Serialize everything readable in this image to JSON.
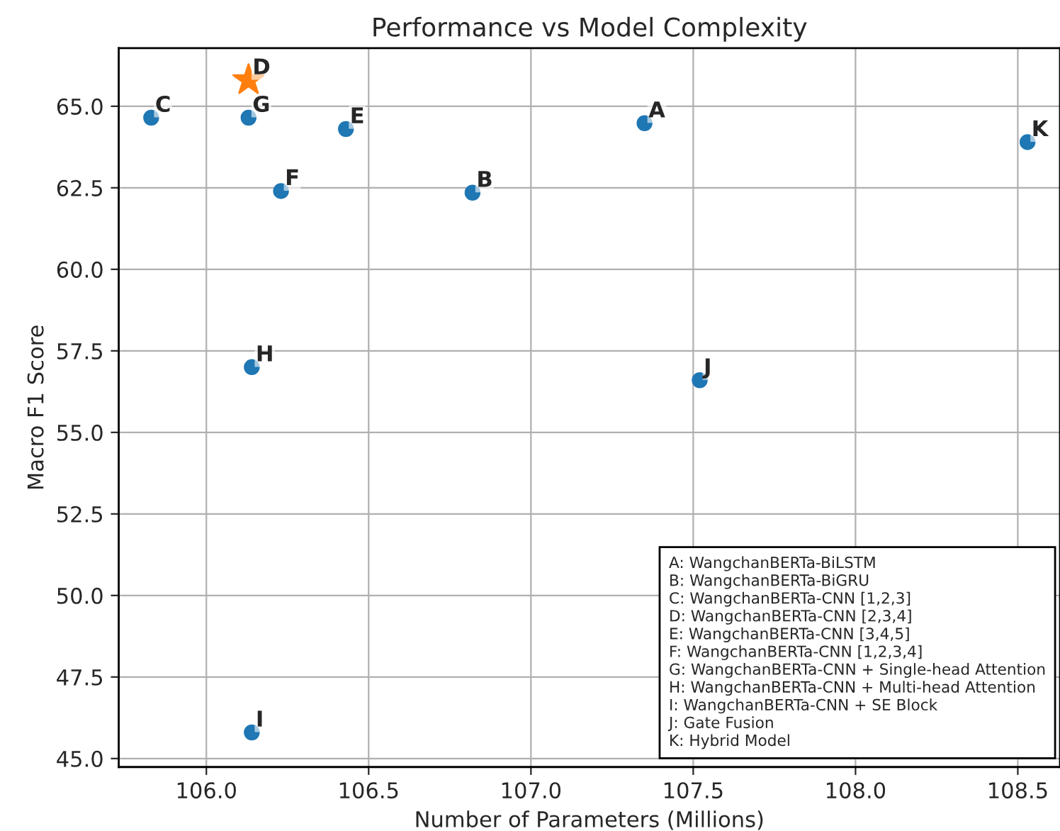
{
  "chart_data": {
    "type": "scatter",
    "title": "Performance vs Model Complexity",
    "xlabel": "Number of Parameters (Millions)",
    "ylabel": "Macro F1 Score",
    "xlim": [
      105.73,
      108.63
    ],
    "xticks": [
      {
        "value": 106,
        "label": "106.0"
      },
      106.5,
      {
        "value": 107,
        "label": "107.0"
      },
      107.5,
      {
        "value": 108,
        "label": "108.0"
      },
      108.5
    ],
    "ylim": [
      44.74,
      66.78
    ],
    "yticks": [
      {
        "value": 45,
        "label": "45.0"
      },
      47.5,
      {
        "value": 50,
        "label": "50.0"
      },
      52.5,
      {
        "value": 55,
        "label": "55.0"
      },
      57.5,
      {
        "value": 60,
        "label": "60.0"
      },
      62.5,
      {
        "value": 65,
        "label": "65.0"
      }
    ],
    "grid": true,
    "series": [
      {
        "name": "A",
        "color": "#1f77b4",
        "marker": "circle",
        "x": [
          107.35
        ],
        "values": [
          64.48
        ]
      },
      {
        "name": "B",
        "color": "#1f77b4",
        "marker": "circle",
        "x": [
          106.82
        ],
        "values": [
          62.35
        ]
      },
      {
        "name": "C",
        "color": "#1f77b4",
        "marker": "circle",
        "x": [
          105.83
        ],
        "values": [
          64.65
        ]
      },
      {
        "name": "D",
        "color": "#ff7f0e",
        "marker": "star",
        "x": [
          106.13
        ],
        "values": [
          65.8
        ]
      },
      {
        "name": "E",
        "color": "#1f77b4",
        "marker": "circle",
        "x": [
          106.43
        ],
        "values": [
          64.3
        ]
      },
      {
        "name": "F",
        "color": "#1f77b4",
        "marker": "circle",
        "x": [
          106.23
        ],
        "values": [
          62.4
        ]
      },
      {
        "name": "G",
        "color": "#1f77b4",
        "marker": "circle",
        "x": [
          106.13
        ],
        "values": [
          64.65
        ]
      },
      {
        "name": "H",
        "color": "#1f77b4",
        "marker": "circle",
        "x": [
          106.14
        ],
        "values": [
          57.0
        ]
      },
      {
        "name": "I",
        "color": "#1f77b4",
        "marker": "circle",
        "x": [
          106.14
        ],
        "values": [
          45.8
        ]
      },
      {
        "name": "J",
        "color": "#1f77b4",
        "marker": "circle",
        "x": [
          107.52
        ],
        "values": [
          56.6
        ]
      },
      {
        "name": "K",
        "color": "#1f77b4",
        "marker": "circle",
        "x": [
          108.53
        ],
        "values": [
          63.9
        ]
      }
    ],
    "annotations": [
      "A: WangchanBERTa-BiLSTM\nB: WangchanBERTa-BiGRU\nC: WangchanBERTa-CNN [1,2,3]\nD: WangchanBERTa-CNN [2,3,4]\nE: WangchanBERTa-CNN [3,4,5]\nF: WangchanBERTa-CNN [1,2,3,4]\nG: WangchanBERTa-CNN + Single-head Attention\nH: WangchanBERTa-CNN + Multi-head Attention\nI: WangchanBERTa-CNN + SE Block\nJ: Gate Fusion\nK: Hybrid Model"
    ]
  }
}
